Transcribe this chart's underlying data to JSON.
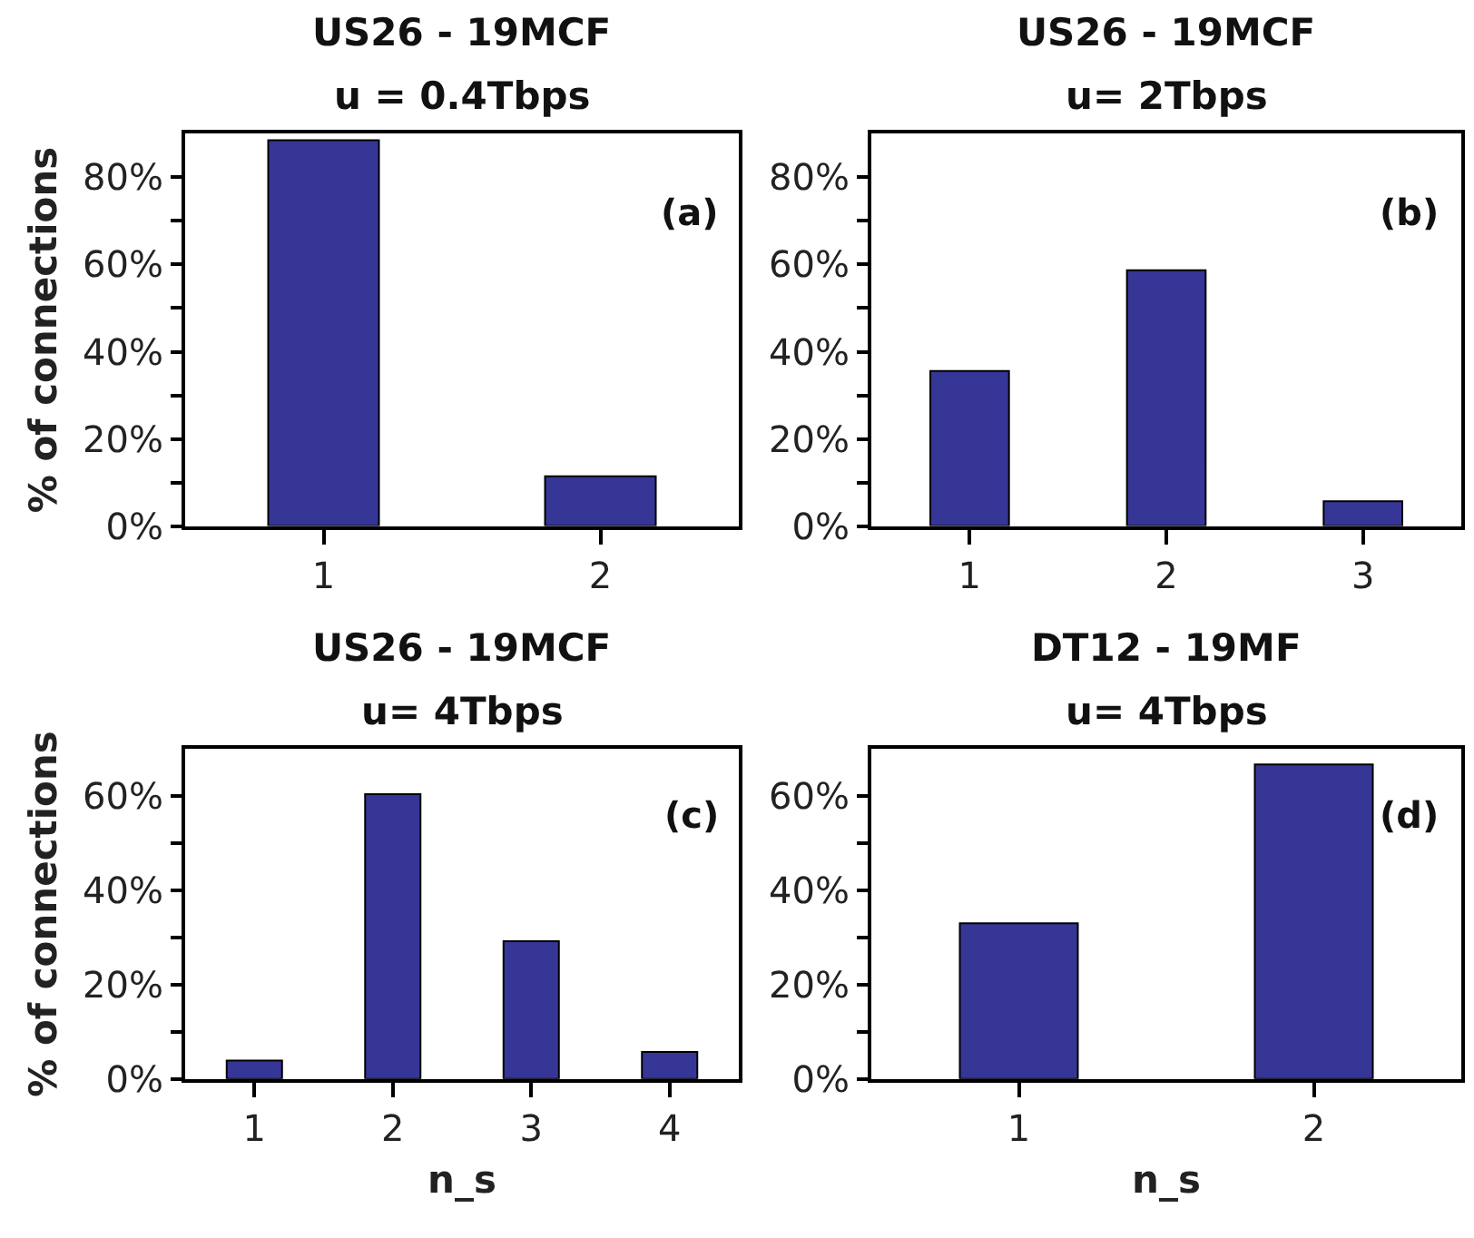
{
  "chart_data": [
    {
      "type": "bar",
      "title": "US26 - 19MCF",
      "subtitle": "u = 0.4Tbps",
      "ylabel": "% of connections",
      "categories": [
        "1",
        "2"
      ],
      "values": [
        88.5,
        11.4
      ],
      "color": "#363697",
      "ylim": [
        0,
        90
      ],
      "yticks": [
        {
          "value": 0,
          "label": "0%"
        },
        {
          "value": 10,
          "label": null
        },
        {
          "value": 20,
          "label": "20%"
        },
        {
          "value": 30,
          "label": null
        },
        {
          "value": 40,
          "label": "40%"
        },
        {
          "value": 50,
          "label": null
        },
        {
          "value": 60,
          "label": "60%"
        },
        {
          "value": 70,
          "label": null
        },
        {
          "value": 80,
          "label": "80%"
        }
      ],
      "annotations": [
        "(a)"
      ]
    },
    {
      "type": "bar",
      "title": "US26 - 19MCF",
      "subtitle": "u= 2Tbps",
      "categories": [
        "1",
        "2",
        "3"
      ],
      "values": [
        35.6,
        58.7,
        5.7
      ],
      "color": "#363697",
      "ylim": [
        0,
        90
      ],
      "yticks": [
        {
          "value": 0,
          "label": "0%"
        },
        {
          "value": 10,
          "label": null
        },
        {
          "value": 20,
          "label": "20%"
        },
        {
          "value": 30,
          "label": null
        },
        {
          "value": 40,
          "label": "40%"
        },
        {
          "value": 50,
          "label": null
        },
        {
          "value": 60,
          "label": "60%"
        },
        {
          "value": 70,
          "label": null
        },
        {
          "value": 80,
          "label": "80%"
        }
      ],
      "annotations": [
        "(b)"
      ]
    },
    {
      "type": "bar",
      "title": "US26 - 19MCF",
      "subtitle": "u= 4Tbps",
      "xlabel": "n_s",
      "ylabel": "% of connections",
      "categories": [
        "1",
        "2",
        "3",
        "4"
      ],
      "values": [
        3.9,
        60.4,
        29.2,
        5.7
      ],
      "color": "#363697",
      "ylim": [
        0,
        70
      ],
      "yticks": [
        {
          "value": 0,
          "label": "0%"
        },
        {
          "value": 10,
          "label": null
        },
        {
          "value": 20,
          "label": "20%"
        },
        {
          "value": 30,
          "label": null
        },
        {
          "value": 40,
          "label": "40%"
        },
        {
          "value": 50,
          "label": null
        },
        {
          "value": 60,
          "label": "60%"
        }
      ],
      "annotations": [
        "(c)"
      ]
    },
    {
      "type": "bar",
      "title": "DT12 - 19MF",
      "subtitle": "u= 4Tbps",
      "xlabel": "n_s",
      "categories": [
        "1",
        "2"
      ],
      "values": [
        33.0,
        66.7
      ],
      "color": "#363697",
      "ylim": [
        0,
        70
      ],
      "yticks": [
        {
          "value": 0,
          "label": "0%"
        },
        {
          "value": 10,
          "label": null
        },
        {
          "value": 20,
          "label": "20%"
        },
        {
          "value": 30,
          "label": null
        },
        {
          "value": 40,
          "label": "40%"
        },
        {
          "value": 50,
          "label": null
        },
        {
          "value": 60,
          "label": "60%"
        }
      ],
      "annotations": [
        "(d)"
      ]
    }
  ]
}
